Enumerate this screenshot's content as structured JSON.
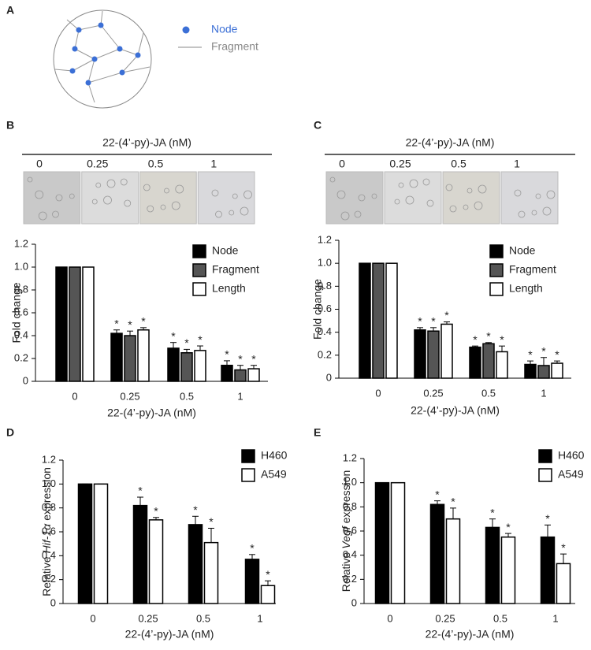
{
  "panel_labels": [
    "A",
    "B",
    "C",
    "D",
    "E"
  ],
  "diagram": {
    "legend": [
      "Node",
      "Fragment"
    ]
  },
  "image_strips": [
    {
      "title": "22-(4’-py)-JA (nM)",
      "labels": [
        "0",
        "0.25",
        "0.5",
        "1"
      ]
    },
    {
      "title": "22-(4’-py)-JA (nM)",
      "labels": [
        "0",
        "0.25",
        "0.5",
        "1"
      ]
    }
  ],
  "chart_data": [
    {
      "type": "bar",
      "ylabel": "Fold change",
      "xlabel": "22-(4’-py)-JA (nM)",
      "categories": [
        "0",
        "0.25",
        "0.5",
        "1"
      ],
      "ylim": [
        0,
        1.2
      ],
      "yticks": [
        0,
        0.2,
        0.4,
        0.6,
        0.8,
        {
          "value": 1,
          "label": "1.0"
        },
        1.2
      ],
      "series": [
        {
          "name": "Node",
          "color": "#000000",
          "values": [
            1,
            0.42,
            0.29,
            0.14
          ],
          "errors": [
            0,
            0.03,
            0.05,
            0.04
          ],
          "significance": [
            null,
            "*",
            "*",
            "*"
          ]
        },
        {
          "name": "Fragment",
          "color": "#555555",
          "values": [
            1,
            0.4,
            0.25,
            0.1
          ],
          "errors": [
            0,
            0.04,
            0.03,
            0.04
          ],
          "significance": [
            null,
            "*",
            "*",
            "*"
          ]
        },
        {
          "name": "Length",
          "color": "#ffffff",
          "values": [
            1,
            0.45,
            0.27,
            0.11
          ],
          "errors": [
            0,
            0.02,
            0.04,
            0.03
          ],
          "significance": [
            null,
            "*",
            "*",
            "*"
          ]
        }
      ]
    },
    {
      "type": "bar",
      "ylabel": "Fold change",
      "xlabel": "22-(4’-py)-JA (nM)",
      "categories": [
        "0",
        "0.25",
        "0.5",
        "1"
      ],
      "ylim": [
        0,
        1.2
      ],
      "yticks": [
        0,
        0.2,
        0.4,
        0.6,
        0.8,
        {
          "value": 1,
          "label": "1.0"
        },
        1.2
      ],
      "series": [
        {
          "name": "Node",
          "color": "#000000",
          "values": [
            1,
            0.42,
            0.27,
            0.12
          ],
          "errors": [
            0,
            0.02,
            0.01,
            0.03
          ],
          "significance": [
            null,
            "*",
            "*",
            "*"
          ]
        },
        {
          "name": "Fragment",
          "color": "#555555",
          "values": [
            1,
            0.41,
            0.3,
            0.11
          ],
          "errors": [
            0,
            0.03,
            0.01,
            0.07
          ],
          "significance": [
            null,
            "*",
            "*",
            "*"
          ]
        },
        {
          "name": "Length",
          "color": "#ffffff",
          "values": [
            1,
            0.47,
            0.23,
            0.13
          ],
          "errors": [
            0,
            0.02,
            0.05,
            0.02
          ],
          "significance": [
            null,
            "*",
            "*",
            "*"
          ]
        }
      ]
    },
    {
      "type": "bar",
      "ylabel": {
        "prefix": "Relative",
        "italic": "Hif-1α",
        "suffix": "expression"
      },
      "xlabel": "22-(4’-py)-JA (nM)",
      "categories": [
        "0",
        "0.25",
        "0.5",
        "1"
      ],
      "ylim": [
        0,
        1.2
      ],
      "yticks": [
        0,
        0.2,
        0.4,
        0.6,
        0.8,
        {
          "value": 1,
          "label": "1.0"
        },
        1.2
      ],
      "series": [
        {
          "name": "H460",
          "color": "#000000",
          "values": [
            1,
            0.82,
            0.66,
            0.37
          ],
          "errors": [
            0,
            0.07,
            0.07,
            0.04
          ],
          "significance": [
            null,
            "*",
            "*",
            "*"
          ]
        },
        {
          "name": "A549",
          "color": "#ffffff",
          "values": [
            1,
            0.7,
            0.51,
            0.15
          ],
          "errors": [
            0,
            0.02,
            0.12,
            0.04
          ],
          "significance": [
            null,
            "*",
            "*",
            "*"
          ]
        }
      ]
    },
    {
      "type": "bar",
      "ylabel": {
        "prefix": "Relative",
        "italic": "Vegf",
        "suffix": "expression"
      },
      "xlabel": "22-(4’-py)-JA (nM)",
      "categories": [
        "0",
        "0.25",
        "0.5",
        "1"
      ],
      "ylim": [
        0,
        1.2
      ],
      "yticks": [
        0,
        0.2,
        0.4,
        0.6,
        0.8,
        {
          "value": 1,
          "label": "1.0"
        },
        1.2
      ],
      "series": [
        {
          "name": "H460",
          "color": "#000000",
          "values": [
            1,
            0.82,
            0.63,
            0.55
          ],
          "errors": [
            0,
            0.03,
            0.07,
            0.1
          ],
          "significance": [
            null,
            "*",
            "*",
            "*"
          ]
        },
        {
          "name": "A549",
          "color": "#ffffff",
          "values": [
            1,
            0.7,
            0.55,
            0.33
          ],
          "errors": [
            0,
            0.09,
            0.03,
            0.08
          ],
          "significance": [
            null,
            "*",
            "*",
            "*"
          ]
        }
      ]
    }
  ]
}
